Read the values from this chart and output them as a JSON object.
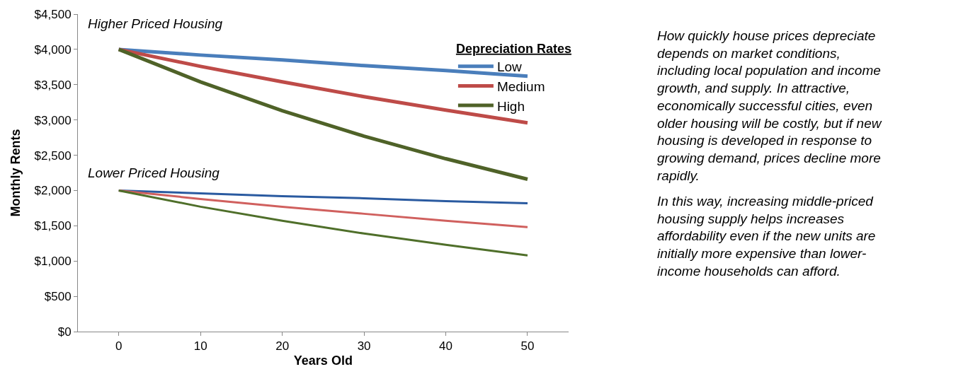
{
  "chart_data": {
    "type": "line",
    "xlabel": "Years Old",
    "ylabel": "Monthly Rents",
    "legend_title": "Depreciation Rates",
    "x": [
      0,
      10,
      20,
      30,
      40,
      50
    ],
    "series": [
      {
        "name": "Low",
        "color": "#4a7ebb",
        "values": [
          4000,
          3920,
          3850,
          3770,
          3700,
          3620
        ]
      },
      {
        "name": "Medium",
        "color": "#be4b48",
        "values": [
          4000,
          3760,
          3540,
          3330,
          3140,
          2960
        ]
      },
      {
        "name": "High",
        "color": "#4f6228",
        "values": [
          4000,
          3540,
          3130,
          2770,
          2450,
          2160
        ]
      },
      {
        "color": "#2a5aa0",
        "values": [
          2000,
          1960,
          1920,
          1890,
          1850,
          1820
        ]
      },
      {
        "color": "#d0605e",
        "values": [
          2000,
          1880,
          1770,
          1670,
          1570,
          1480
        ]
      },
      {
        "color": "#4f6f2a",
        "values": [
          2000,
          1770,
          1570,
          1390,
          1230,
          1080
        ]
      }
    ],
    "xlim": [
      -5,
      55
    ],
    "xticks": [
      0,
      10,
      20,
      30,
      40,
      50
    ],
    "ylim": [
      0,
      4500
    ],
    "yticks": [
      {
        "value": 0,
        "label": "$0"
      },
      {
        "value": 500,
        "label": "$500"
      },
      {
        "value": 1000,
        "label": "$1,000"
      },
      {
        "value": 1500,
        "label": "$1,500"
      },
      {
        "value": 2000,
        "label": "$2,000"
      },
      {
        "value": 2500,
        "label": "$2,500"
      },
      {
        "value": 3000,
        "label": "$3,000"
      },
      {
        "value": 3500,
        "label": "$3,500"
      },
      {
        "value": 4000,
        "label": "$4,000"
      },
      {
        "value": 4500,
        "label": "$4,500"
      }
    ],
    "legend": "right",
    "marker": "none",
    "line_style": "solid",
    "annotations": [
      "Higher Priced Housing",
      "Lower Priced Housing",
      "How quickly house prices depreciate\ndepends on market conditions,\nincluding local population and income\ngrowth, and supply. In attractive,\neconomically successful cities, even\nolder housing will be costly, but if new\nhousing is developed in response to\ngrowing demand, prices decline more\nrapidly.",
      "In this way, increasing middle-priced\nhousing supply helps increases\naffordability even if the new units are\ninitially more expensive than lower-\nincome households can afford."
    ]
  }
}
